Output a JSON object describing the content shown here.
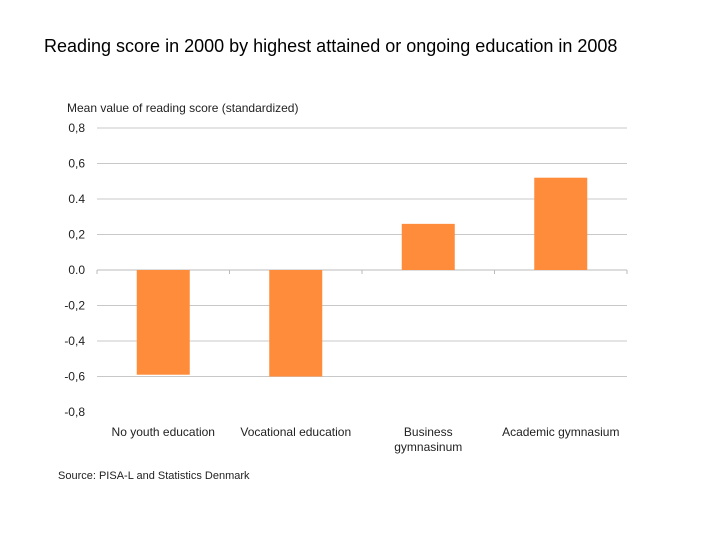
{
  "title": "Reading score in 2000 by highest attained or ongoing education in 2008",
  "chart_data": {
    "type": "bar",
    "ylabel": "Mean value of reading score (standardized)",
    "ylim": [
      -0.8,
      0.8
    ],
    "yticks": [
      0.8,
      0.6,
      0.4,
      0.2,
      0.0,
      -0.2,
      -0.4,
      -0.6,
      -0.8
    ],
    "ytick_labels": [
      "0,8",
      "0,6",
      "0.4",
      "0,2",
      "0.0",
      "-0,2",
      "-0,4",
      "-0,6",
      "-0,8"
    ],
    "categories": [
      [
        "No youth education"
      ],
      [
        "Vocational education"
      ],
      [
        "Business",
        "gymnasinum"
      ],
      [
        "Academic gymnasium"
      ]
    ],
    "values": [
      -0.59,
      -0.6,
      0.26,
      0.52
    ],
    "grid": true,
    "source": "Source: PISA-L and Statistics Denmark",
    "colors": {
      "bar": "#FF8C3A",
      "grid": "#C8C8C8",
      "axis": "#BBBBBB"
    }
  }
}
